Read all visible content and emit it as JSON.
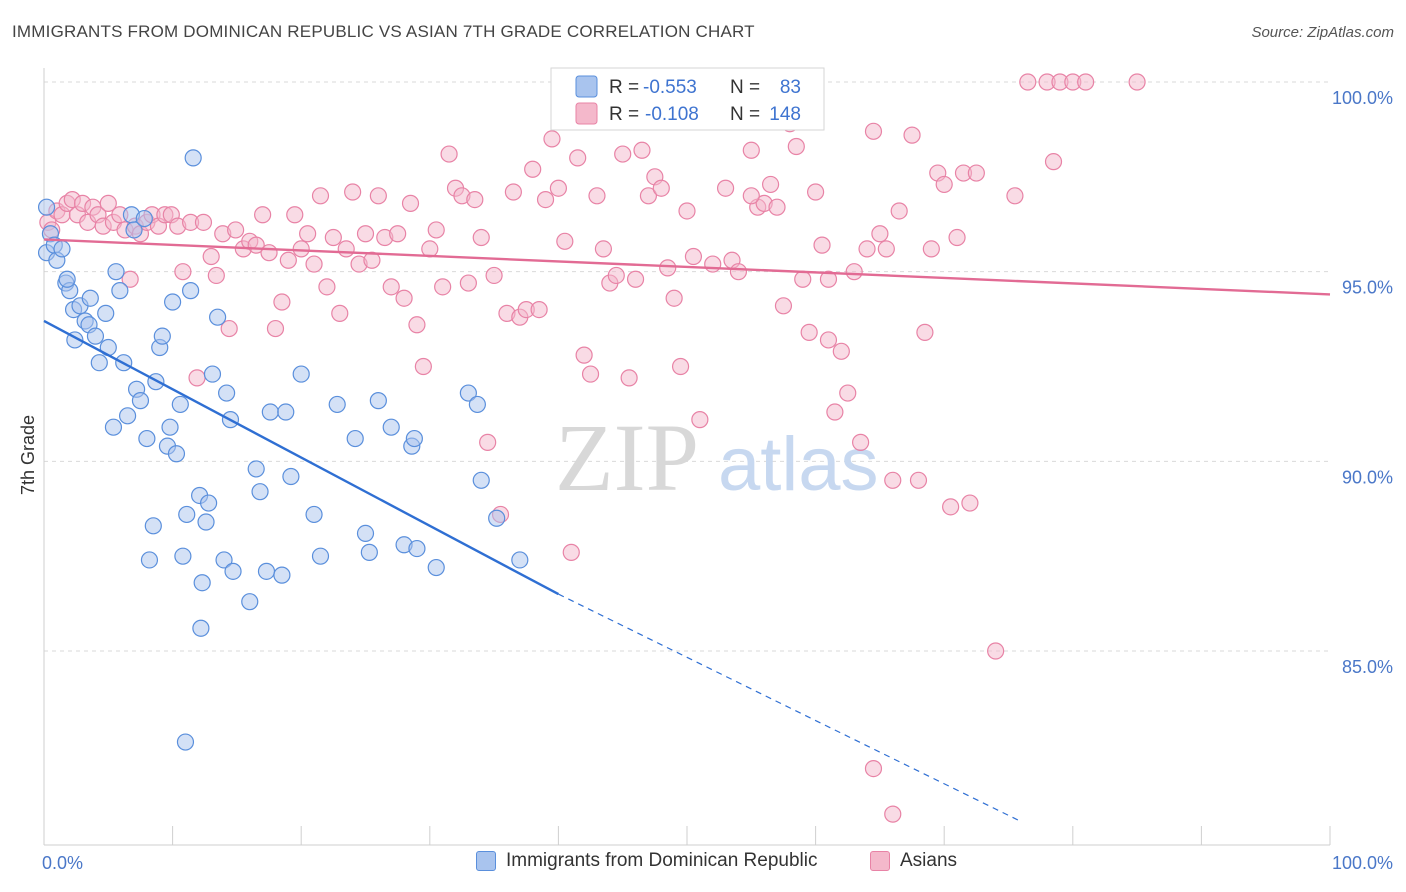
{
  "title": "IMMIGRANTS FROM DOMINICAN REPUBLIC VS ASIAN 7TH GRADE CORRELATION CHART",
  "source": "Source: ZipAtlas.com",
  "watermark": {
    "zip": "ZIP",
    "atlas": "atlas"
  },
  "colors": {
    "blue_fill": "#a9c4ee",
    "blue_stroke": "#5a8fdc",
    "blue_line": "#2f6fd3",
    "pink_fill": "#f4b8cb",
    "pink_stroke": "#e883a6",
    "pink_line": "#e26b94",
    "grid": "#d9d9d9",
    "tick_label": "#4a77c8"
  },
  "legend": {
    "rows": [
      {
        "r_label": "R =",
        "r_value": "-0.553",
        "n_label": "N =",
        "n_value": "83",
        "series": "blue"
      },
      {
        "r_label": "R =",
        "r_value": "-0.108",
        "n_label": "N =",
        "n_value": "148",
        "series": "pink"
      }
    ]
  },
  "bottom_legend": [
    {
      "label": "Immigrants from Dominican Republic",
      "series": "blue"
    },
    {
      "label": "Asians",
      "series": "pink"
    }
  ],
  "chart_data": {
    "type": "scatter",
    "title": "IMMIGRANTS FROM DOMINICAN REPUBLIC VS ASIAN 7TH GRADE CORRELATION CHART",
    "xlabel": "",
    "ylabel": "7th Grade",
    "xlim": [
      0,
      100
    ],
    "ylim": [
      80.5,
      100.7
    ],
    "x_tick_labels": [
      "0.0%",
      "100.0%"
    ],
    "y_ticks": [
      85,
      90,
      95,
      100
    ],
    "y_tick_labels": [
      "85.0%",
      "90.0%",
      "95.0%",
      "100.0%"
    ],
    "grid": "horizontal dashed",
    "legend_position": "top-center",
    "series": [
      {
        "name": "Immigrants from Dominican Republic",
        "color": "#a9c4ee",
        "trend": {
          "x": [
            0,
            40
          ],
          "y": [
            93.7,
            86.5
          ],
          "dashed_to": [
            76,
            80.5
          ]
        },
        "points": [
          [
            0.2,
            96.7
          ],
          [
            0.2,
            95.5
          ],
          [
            0.5,
            96.0
          ],
          [
            0.8,
            95.7
          ],
          [
            1.0,
            95.3
          ],
          [
            1.4,
            95.6
          ],
          [
            1.7,
            94.7
          ],
          [
            2.0,
            94.5
          ],
          [
            2.3,
            94.0
          ],
          [
            2.4,
            93.2
          ],
          [
            2.8,
            94.1
          ],
          [
            3.2,
            93.7
          ],
          [
            3.5,
            93.6
          ],
          [
            3.6,
            94.3
          ],
          [
            4.0,
            93.3
          ],
          [
            4.3,
            92.6
          ],
          [
            4.8,
            93.9
          ],
          [
            5.0,
            93.0
          ],
          [
            5.4,
            90.9
          ],
          [
            5.6,
            95.0
          ],
          [
            5.9,
            94.5
          ],
          [
            6.2,
            92.6
          ],
          [
            6.5,
            91.2
          ],
          [
            6.8,
            96.5
          ],
          [
            7.0,
            96.1
          ],
          [
            7.2,
            91.9
          ],
          [
            7.5,
            91.6
          ],
          [
            7.8,
            96.4
          ],
          [
            8.0,
            90.6
          ],
          [
            8.2,
            87.4
          ],
          [
            8.5,
            88.3
          ],
          [
            8.7,
            92.1
          ],
          [
            9.0,
            93.0
          ],
          [
            9.2,
            93.3
          ],
          [
            9.6,
            90.4
          ],
          [
            9.8,
            90.9
          ],
          [
            10.0,
            94.2
          ],
          [
            10.3,
            90.2
          ],
          [
            10.6,
            91.5
          ],
          [
            10.8,
            87.5
          ],
          [
            11.1,
            88.6
          ],
          [
            11.4,
            94.5
          ],
          [
            11.6,
            98.0
          ],
          [
            12.1,
            89.1
          ],
          [
            12.2,
            85.6
          ],
          [
            12.3,
            86.8
          ],
          [
            12.6,
            88.4
          ],
          [
            12.8,
            88.9
          ],
          [
            13.1,
            92.3
          ],
          [
            13.5,
            93.8
          ],
          [
            14.0,
            87.4
          ],
          [
            14.2,
            91.8
          ],
          [
            14.5,
            91.1
          ],
          [
            14.7,
            87.1
          ],
          [
            16.0,
            86.3
          ],
          [
            16.5,
            89.8
          ],
          [
            16.8,
            89.2
          ],
          [
            17.3,
            87.1
          ],
          [
            17.6,
            91.3
          ],
          [
            18.5,
            87.0
          ],
          [
            18.8,
            91.3
          ],
          [
            19.2,
            89.6
          ],
          [
            20.0,
            92.3
          ],
          [
            21.0,
            88.6
          ],
          [
            21.5,
            87.5
          ],
          [
            22.8,
            91.5
          ],
          [
            24.2,
            90.6
          ],
          [
            25.0,
            88.1
          ],
          [
            25.3,
            87.6
          ],
          [
            26.0,
            91.6
          ],
          [
            27.0,
            90.9
          ],
          [
            28.0,
            87.8
          ],
          [
            28.6,
            90.4
          ],
          [
            28.8,
            90.6
          ],
          [
            29.0,
            87.7
          ],
          [
            30.5,
            87.2
          ],
          [
            33.0,
            91.8
          ],
          [
            33.7,
            91.5
          ],
          [
            34.0,
            89.5
          ],
          [
            35.2,
            88.5
          ],
          [
            37.0,
            87.4
          ],
          [
            11.0,
            82.6
          ],
          [
            1.8,
            94.8
          ]
        ]
      },
      {
        "name": "Asians",
        "color": "#f4b8cb",
        "trend": {
          "x": [
            0,
            100
          ],
          "y": [
            95.85,
            94.4
          ]
        },
        "points": [
          [
            0.3,
            96.3
          ],
          [
            0.6,
            96.1
          ],
          [
            1.0,
            96.6
          ],
          [
            1.4,
            96.5
          ],
          [
            1.8,
            96.8
          ],
          [
            2.2,
            96.9
          ],
          [
            2.6,
            96.5
          ],
          [
            3.0,
            96.8
          ],
          [
            3.4,
            96.3
          ],
          [
            3.8,
            96.7
          ],
          [
            4.2,
            96.5
          ],
          [
            4.6,
            96.2
          ],
          [
            5.0,
            96.8
          ],
          [
            5.4,
            96.3
          ],
          [
            5.9,
            96.5
          ],
          [
            6.3,
            96.1
          ],
          [
            6.7,
            94.8
          ],
          [
            7.1,
            96.2
          ],
          [
            7.5,
            96.0
          ],
          [
            8.0,
            96.3
          ],
          [
            8.4,
            96.5
          ],
          [
            8.9,
            96.2
          ],
          [
            9.4,
            96.5
          ],
          [
            9.9,
            96.5
          ],
          [
            10.4,
            96.2
          ],
          [
            10.8,
            95.0
          ],
          [
            11.4,
            96.3
          ],
          [
            11.9,
            92.2
          ],
          [
            12.4,
            96.3
          ],
          [
            13.0,
            95.4
          ],
          [
            13.4,
            94.9
          ],
          [
            13.9,
            96.0
          ],
          [
            14.4,
            93.5
          ],
          [
            14.9,
            96.1
          ],
          [
            15.5,
            95.6
          ],
          [
            16.0,
            95.8
          ],
          [
            16.5,
            95.7
          ],
          [
            17.0,
            96.5
          ],
          [
            17.5,
            95.5
          ],
          [
            18.0,
            93.5
          ],
          [
            18.5,
            94.2
          ],
          [
            19.0,
            95.3
          ],
          [
            19.5,
            96.5
          ],
          [
            20.0,
            95.6
          ],
          [
            20.5,
            96.0
          ],
          [
            21.0,
            95.2
          ],
          [
            21.5,
            97.0
          ],
          [
            22.0,
            94.6
          ],
          [
            22.5,
            95.9
          ],
          [
            23.0,
            93.9
          ],
          [
            23.5,
            95.6
          ],
          [
            24.0,
            97.1
          ],
          [
            24.5,
            95.2
          ],
          [
            25.0,
            96.0
          ],
          [
            25.5,
            95.3
          ],
          [
            26.0,
            97.0
          ],
          [
            26.5,
            95.9
          ],
          [
            27.0,
            94.6
          ],
          [
            27.5,
            96.0
          ],
          [
            28.0,
            94.3
          ],
          [
            28.5,
            96.8
          ],
          [
            29.0,
            93.6
          ],
          [
            29.5,
            92.5
          ],
          [
            30.0,
            95.6
          ],
          [
            30.5,
            96.1
          ],
          [
            31.0,
            94.6
          ],
          [
            31.5,
            98.1
          ],
          [
            32.0,
            97.2
          ],
          [
            32.5,
            97.0
          ],
          [
            33.0,
            94.7
          ],
          [
            33.5,
            96.9
          ],
          [
            34.0,
            95.9
          ],
          [
            34.5,
            90.5
          ],
          [
            35.0,
            94.9
          ],
          [
            35.5,
            88.6
          ],
          [
            36.0,
            93.9
          ],
          [
            36.5,
            97.1
          ],
          [
            37.0,
            93.8
          ],
          [
            37.5,
            94.0
          ],
          [
            38.0,
            97.7
          ],
          [
            38.5,
            94.0
          ],
          [
            39.0,
            96.9
          ],
          [
            39.5,
            98.5
          ],
          [
            40.0,
            97.2
          ],
          [
            40.5,
            95.8
          ],
          [
            41.0,
            87.6
          ],
          [
            41.5,
            98.0
          ],
          [
            42.0,
            92.8
          ],
          [
            42.5,
            92.3
          ],
          [
            43.0,
            97.0
          ],
          [
            43.5,
            95.6
          ],
          [
            44.0,
            94.7
          ],
          [
            44.5,
            94.9
          ],
          [
            45.0,
            98.1
          ],
          [
            45.5,
            92.2
          ],
          [
            46.0,
            94.8
          ],
          [
            46.5,
            98.2
          ],
          [
            47.0,
            97.0
          ],
          [
            47.5,
            97.5
          ],
          [
            48.0,
            97.2
          ],
          [
            48.5,
            95.1
          ],
          [
            49.0,
            94.3
          ],
          [
            49.5,
            92.5
          ],
          [
            50.0,
            96.6
          ],
          [
            50.5,
            95.4
          ],
          [
            51.0,
            91.1
          ],
          [
            52.0,
            95.2
          ],
          [
            53.0,
            97.2
          ],
          [
            53.5,
            95.3
          ],
          [
            54.0,
            95.0
          ],
          [
            55.0,
            98.2
          ],
          [
            55.5,
            96.7
          ],
          [
            56.0,
            96.8
          ],
          [
            56.5,
            97.3
          ],
          [
            57.0,
            96.7
          ],
          [
            57.5,
            94.1
          ],
          [
            58.0,
            98.9
          ],
          [
            58.5,
            98.3
          ],
          [
            59.0,
            94.8
          ],
          [
            59.5,
            93.4
          ],
          [
            60.0,
            97.1
          ],
          [
            60.5,
            95.7
          ],
          [
            61.0,
            93.2
          ],
          [
            61.5,
            91.3
          ],
          [
            62.0,
            92.9
          ],
          [
            62.5,
            91.8
          ],
          [
            63.0,
            95.0
          ],
          [
            63.5,
            90.5
          ],
          [
            64.0,
            95.6
          ],
          [
            64.5,
            98.7
          ],
          [
            65.0,
            96.0
          ],
          [
            65.5,
            95.6
          ],
          [
            66.0,
            89.5
          ],
          [
            66.5,
            96.6
          ],
          [
            67.5,
            98.6
          ],
          [
            68.0,
            89.5
          ],
          [
            68.5,
            93.4
          ],
          [
            69.0,
            95.6
          ],
          [
            69.5,
            97.6
          ],
          [
            70.0,
            97.3
          ],
          [
            70.5,
            88.8
          ],
          [
            71.0,
            95.9
          ],
          [
            71.5,
            97.6
          ],
          [
            72.0,
            88.9
          ],
          [
            72.5,
            97.6
          ],
          [
            74.0,
            85.0
          ],
          [
            75.5,
            97.0
          ],
          [
            76.5,
            100.0
          ],
          [
            78.0,
            100.0
          ],
          [
            78.5,
            97.9
          ],
          [
            79.0,
            100.0
          ],
          [
            80.0,
            100.0
          ],
          [
            81.0,
            100.0
          ],
          [
            85.0,
            100.0
          ],
          [
            64.5,
            81.9
          ],
          [
            66.0,
            80.7
          ],
          [
            61.0,
            94.8
          ],
          [
            55.0,
            97.0
          ]
        ]
      }
    ]
  }
}
